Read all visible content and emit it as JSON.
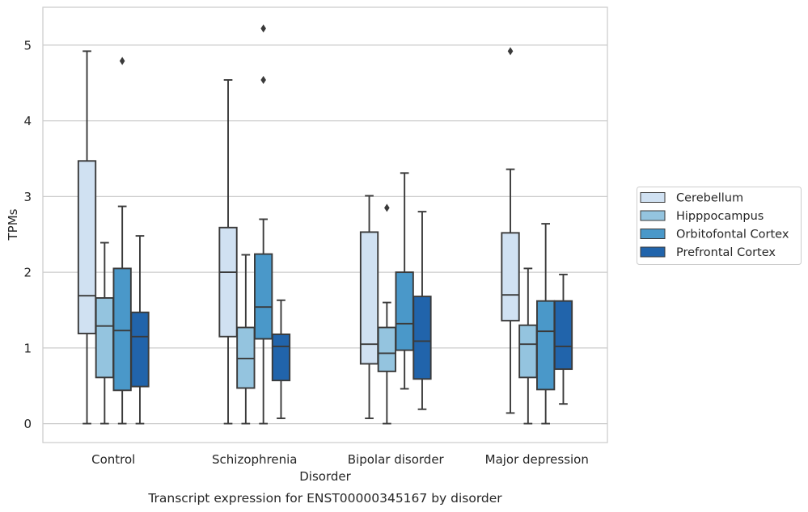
{
  "chart_data": {
    "type": "boxplot",
    "title": "Transcript expression for ENST00000345167 by disorder",
    "xlabel": "Disorder",
    "ylabel": "TPMs",
    "categories": [
      "Control",
      "Schizophrenia",
      "Bipolar disorder",
      "Major depression"
    ],
    "ylim": [
      -0.25,
      5.5
    ],
    "yticks": [
      0,
      1,
      2,
      3,
      4,
      5
    ],
    "grid": true,
    "legend_position": "right",
    "series": [
      {
        "name": "Cerebellum",
        "color": "#d0e1f2",
        "boxes": [
          {
            "min": 0.0,
            "q1": 1.19,
            "median": 1.69,
            "q3": 3.47,
            "max": 4.92,
            "outliers": []
          },
          {
            "min": 0.0,
            "q1": 1.15,
            "median": 2.0,
            "q3": 2.59,
            "max": 4.54,
            "outliers": []
          },
          {
            "min": 0.07,
            "q1": 0.79,
            "median": 1.05,
            "q3": 2.53,
            "max": 3.01,
            "outliers": []
          },
          {
            "min": 0.14,
            "q1": 1.36,
            "median": 1.7,
            "q3": 2.52,
            "max": 3.36,
            "outliers": [
              4.92
            ]
          }
        ]
      },
      {
        "name": "Hipppocampus",
        "color": "#94c4df",
        "boxes": [
          {
            "min": 0.0,
            "q1": 0.61,
            "median": 1.29,
            "q3": 1.66,
            "max": 2.39,
            "outliers": []
          },
          {
            "min": 0.0,
            "q1": 0.47,
            "median": 0.86,
            "q3": 1.27,
            "max": 2.23,
            "outliers": []
          },
          {
            "min": 0.0,
            "q1": 0.69,
            "median": 0.93,
            "q3": 1.27,
            "max": 1.6,
            "outliers": [
              2.85
            ]
          },
          {
            "min": 0.0,
            "q1": 0.61,
            "median": 1.05,
            "q3": 1.3,
            "max": 2.05,
            "outliers": []
          }
        ]
      },
      {
        "name": "Orbitofontal Cortex",
        "color": "#4a98c9",
        "boxes": [
          {
            "min": 0.0,
            "q1": 0.44,
            "median": 1.23,
            "q3": 2.05,
            "max": 2.87,
            "outliers": [
              4.79
            ]
          },
          {
            "min": 0.0,
            "q1": 1.12,
            "median": 1.54,
            "q3": 2.24,
            "max": 2.7,
            "outliers": [
              4.54,
              5.22
            ]
          },
          {
            "min": 0.46,
            "q1": 0.97,
            "median": 1.32,
            "q3": 2.0,
            "max": 3.31,
            "outliers": []
          },
          {
            "min": 0.0,
            "q1": 0.45,
            "median": 1.22,
            "q3": 1.62,
            "max": 2.64,
            "outliers": []
          }
        ]
      },
      {
        "name": "Prefrontal Cortex",
        "color": "#2164ab",
        "boxes": [
          {
            "min": 0.0,
            "q1": 0.49,
            "median": 1.15,
            "q3": 1.47,
            "max": 2.48,
            "outliers": []
          },
          {
            "min": 0.07,
            "q1": 0.57,
            "median": 1.02,
            "q3": 1.18,
            "max": 1.63,
            "outliers": []
          },
          {
            "min": 0.19,
            "q1": 0.59,
            "median": 1.09,
            "q3": 1.68,
            "max": 2.8,
            "outliers": []
          },
          {
            "min": 0.26,
            "q1": 0.72,
            "median": 1.02,
            "q3": 1.62,
            "max": 1.97,
            "outliers": []
          }
        ]
      }
    ]
  }
}
